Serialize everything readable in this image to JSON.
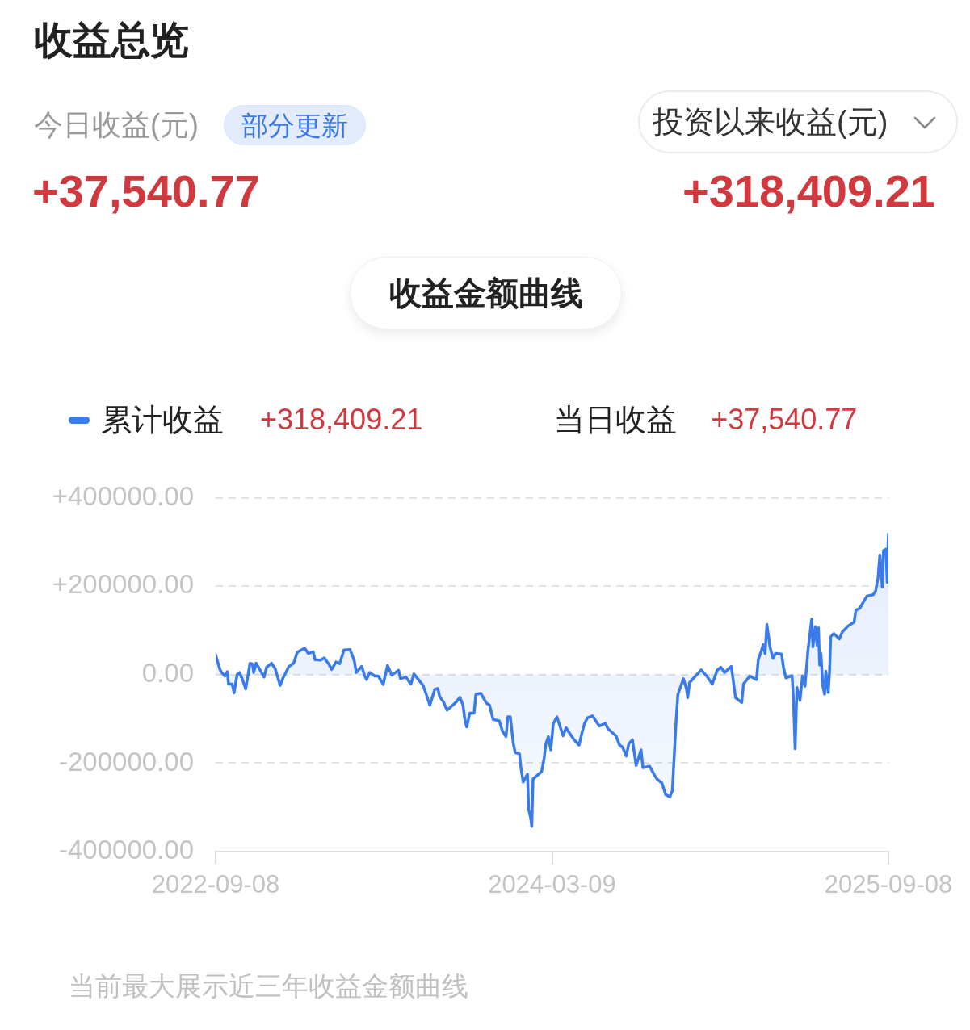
{
  "chart_data": {
    "type": "area",
    "title": "收益总览",
    "annotations": [
      "今日收益(元)",
      "部分更新",
      "投资以来收益(元)",
      "+37,540.77",
      "+318,409.21",
      "收益金额曲线",
      "+318,409.21",
      "当日收益",
      "+37,540.77",
      "当前最大展示近三年收益金额曲线"
    ],
    "x": [
      "2022-09-08",
      "2022-09-15",
      "2022-09-18",
      "2022-09-23",
      "2022-09-27",
      "2022-09-29",
      "2022-10-05",
      "2022-10-08",
      "2022-10-13",
      "2022-10-17",
      "2022-10-22",
      "2022-10-27",
      "2022-11-03",
      "2022-11-07",
      "2022-11-09",
      "2022-11-13",
      "2022-11-26",
      "2022-11-30",
      "2022-12-08",
      "2022-12-14",
      "2022-12-22",
      "2022-12-27",
      "2023-01-05",
      "2023-01-13",
      "2023-01-19",
      "2023-01-31",
      "2023-02-06",
      "2023-02-14",
      "2023-02-17",
      "2023-02-26",
      "2023-03-04",
      "2023-03-11",
      "2023-03-16",
      "2023-03-23",
      "2023-03-29",
      "2023-04-05",
      "2023-04-15",
      "2023-04-22",
      "2023-04-25",
      "2023-05-04",
      "2023-05-09",
      "2023-05-12",
      "2023-05-17",
      "2023-05-25",
      "2023-05-31",
      "2023-06-08",
      "2023-06-15",
      "2023-06-22",
      "2023-07-03",
      "2023-07-06",
      "2023-07-15",
      "2023-07-23",
      "2023-07-28",
      "2023-08-12",
      "2023-08-17",
      "2023-08-23",
      "2023-08-31",
      "2023-09-05",
      "2023-09-08",
      "2023-09-14",
      "2023-09-20",
      "2023-10-04",
      "2023-10-11",
      "2023-10-16",
      "2023-10-19",
      "2023-10-22",
      "2023-10-27",
      "2023-11-03",
      "2023-11-06",
      "2023-11-14",
      "2023-11-23",
      "2023-11-28",
      "2023-12-04",
      "2023-12-14",
      "2023-12-19",
      "2023-12-25",
      "2023-12-28",
      "2024-01-01",
      "2024-01-06",
      "2024-01-09",
      "2024-01-16",
      "2024-01-18",
      "2024-01-22",
      "2024-01-29",
      "2024-01-31",
      "2024-02-03",
      "2024-02-05",
      "2024-02-07",
      "2024-02-21",
      "2024-02-25",
      "2024-02-28",
      "2024-03-03",
      "2024-03-07",
      "2024-03-11",
      "2024-03-17",
      "2024-03-27",
      "2024-04-01",
      "2024-04-07",
      "2024-04-14",
      "2024-04-22",
      "2024-04-27",
      "2024-05-01",
      "2024-05-06",
      "2024-05-14",
      "2024-05-25",
      "2024-06-04",
      "2024-06-08",
      "2024-06-21",
      "2024-06-27",
      "2024-07-02",
      "2024-07-08",
      "2024-07-12",
      "2024-07-18",
      "2024-07-24",
      "2024-08-01",
      "2024-08-04",
      "2024-08-15",
      "2024-08-22",
      "2024-08-27",
      "2024-09-04",
      "2024-09-10",
      "2024-09-17",
      "2024-09-21",
      "2024-09-27",
      "2024-09-30",
      "2024-10-09",
      "2024-10-14",
      "2024-10-16",
      "2024-10-19",
      "2024-10-26",
      "2024-11-07",
      "2024-11-16",
      "2024-11-25",
      "2024-12-03",
      "2024-12-09",
      "2024-12-15",
      "2024-12-26",
      "2025-01-02",
      "2025-01-12",
      "2025-01-15",
      "2025-01-20",
      "2025-01-25",
      "2025-02-05",
      "2025-02-08",
      "2025-02-13",
      "2025-02-16",
      "2025-02-19",
      "2025-02-22",
      "2025-02-27",
      "2025-03-04",
      "2025-03-08",
      "2025-03-18",
      "2025-03-21",
      "2025-03-25",
      "2025-04-04",
      "2025-04-06",
      "2025-04-09",
      "2025-04-12",
      "2025-04-17",
      "2025-04-21",
      "2025-04-25",
      "2025-04-30",
      "2025-05-06",
      "2025-05-08",
      "2025-05-12",
      "2025-05-15",
      "2025-05-17",
      "2025-05-19",
      "2025-05-21",
      "2025-05-24",
      "2025-05-27",
      "2025-05-29",
      "2025-06-02",
      "2025-06-04",
      "2025-06-06",
      "2025-06-11",
      "2025-06-20",
      "2025-06-25",
      "2025-07-04",
      "2025-07-14",
      "2025-07-17",
      "2025-07-23",
      "2025-08-04",
      "2025-08-14",
      "2025-08-18",
      "2025-08-22",
      "2025-08-25",
      "2025-08-29",
      "2025-08-31",
      "2025-09-04",
      "2025-09-06",
      "2025-09-07",
      "2025-09-08"
    ],
    "series": [
      {
        "name": "累计收益",
        "color": "#3a7bec",
        "values": [
          45000,
          12000,
          5000,
          -3000,
          7000,
          -21000,
          -21000,
          -41000,
          0,
          5000,
          -12000,
          -32000,
          26000,
          24000,
          5000,
          26000,
          -5000,
          17000,
          26000,
          14000,
          -24000,
          -7000,
          18000,
          26000,
          51000,
          60000,
          48000,
          52000,
          34000,
          33000,
          38000,
          25000,
          12000,
          29000,
          25000,
          56000,
          57000,
          31000,
          5000,
          19000,
          -3000,
          -11000,
          5000,
          -3000,
          -3000,
          -22000,
          21000,
          -1000,
          10000,
          -9000,
          -5000,
          -21000,
          2000,
          -24000,
          -44000,
          -69000,
          -33000,
          -31000,
          -50000,
          -61000,
          -80000,
          -63000,
          -51000,
          -69000,
          -101000,
          -118000,
          -87000,
          -87000,
          -44000,
          -42000,
          -64000,
          -68000,
          -101000,
          -104000,
          -127000,
          -140000,
          -95000,
          -95000,
          -156000,
          -176000,
          -179000,
          -207000,
          -243000,
          -225000,
          -305000,
          -322000,
          -343000,
          -236000,
          -219000,
          -190000,
          -156000,
          -140000,
          -170000,
          -111000,
          -95000,
          -138000,
          -120000,
          -133000,
          -147000,
          -159000,
          -130000,
          -110000,
          -97000,
          -93000,
          -116000,
          -110000,
          -122000,
          -138000,
          -159000,
          -164000,
          -184000,
          -156000,
          -147000,
          -205000,
          -170000,
          -210000,
          -207000,
          -225000,
          -236000,
          -245000,
          -271000,
          -276000,
          -262000,
          -107000,
          -45000,
          -9000,
          -32000,
          -52000,
          -18000,
          -7000,
          11000,
          -3000,
          -21000,
          10000,
          17000,
          5000,
          19000,
          -52000,
          -63000,
          -21000,
          -12000,
          -3000,
          -11000,
          34000,
          54000,
          68000,
          48000,
          114000,
          63000,
          37000,
          48000,
          47000,
          17000,
          -7000,
          -2000,
          -49000,
          -167000,
          -29000,
          -58000,
          -3000,
          -26000,
          56000,
          126000,
          63000,
          109000,
          66000,
          106000,
          22000,
          48000,
          -24000,
          -44000,
          8000,
          -40000,
          5000,
          86000,
          93000,
          81000,
          97000,
          110000,
          119000,
          146000,
          150000,
          178000,
          181000,
          189000,
          219000,
          271000,
          198000,
          281000,
          284000,
          209000,
          280000,
          318409.21
        ]
      }
    ],
    "xlim": [
      "2022-09-08",
      "2025-09-08"
    ],
    "xticks": [
      "2022-09-08",
      "2024-03-09",
      "2025-09-08"
    ],
    "ylim": [
      -400000,
      400000
    ],
    "yticks": [
      {
        "value": 400000,
        "label": "+400000.00"
      },
      {
        "value": 200000,
        "label": "+200000.00"
      },
      {
        "value": 0,
        "label": "0.00"
      },
      {
        "value": -200000,
        "label": "-200000.00"
      },
      {
        "value": -400000,
        "label": "-400000.00"
      }
    ],
    "grid": "y",
    "legend": "top left",
    "marker": "none"
  }
}
